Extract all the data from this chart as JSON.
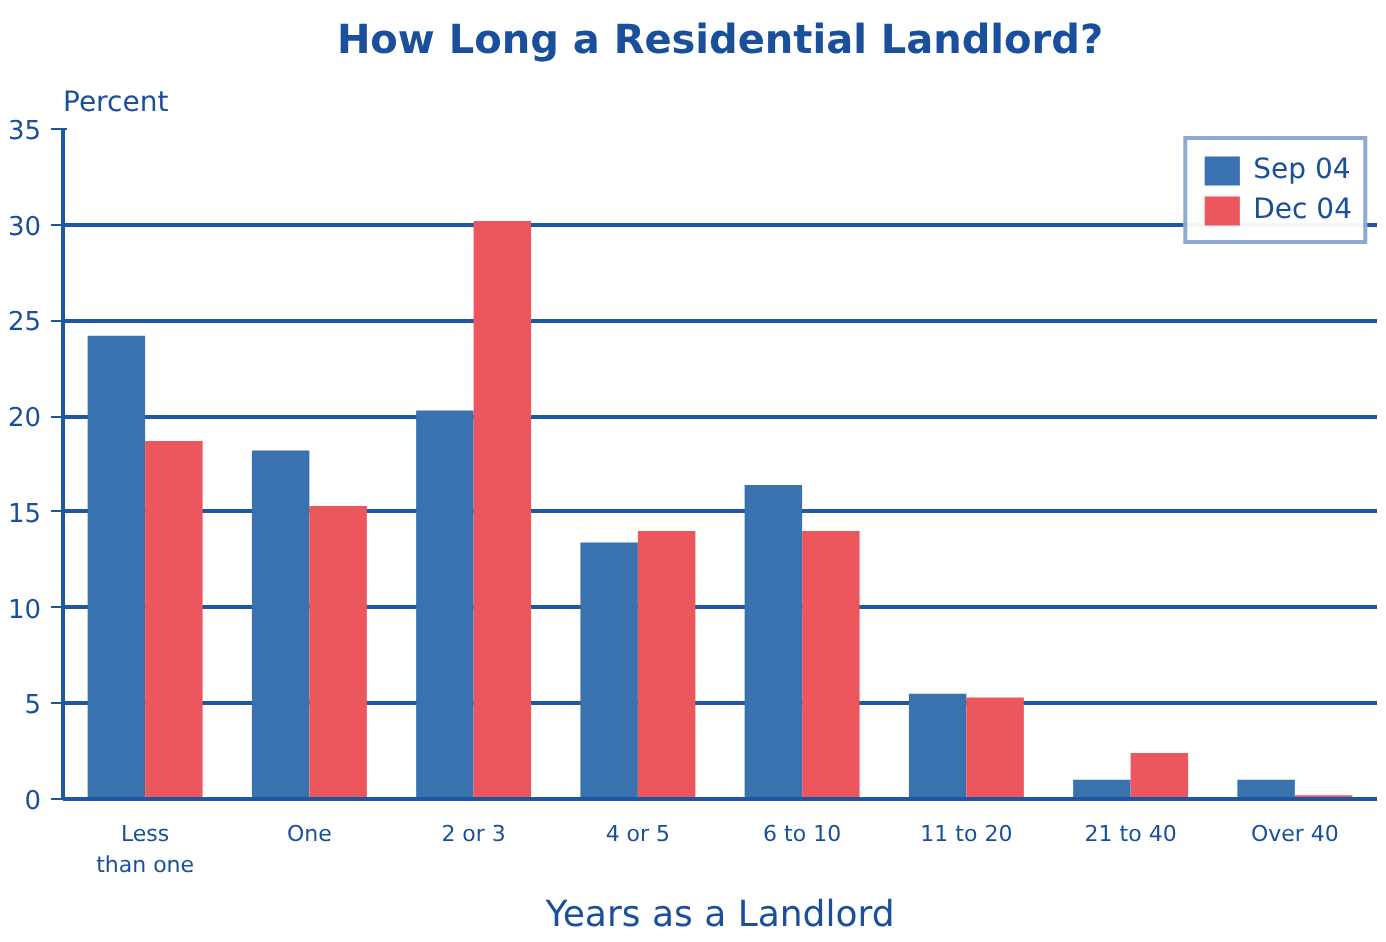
{
  "chart_data": {
    "type": "bar",
    "title": "How Long a Residential Landlord?",
    "xlabel": "Years as a Landlord",
    "ylabel": "Percent",
    "categories": [
      "Less than one",
      "One",
      "2 or 3",
      "4 or 5",
      "6 to 10",
      "11 to 20",
      "21 to 40",
      "Over 40"
    ],
    "series": [
      {
        "name": "Sep 04",
        "color": "#3a72b0",
        "values": [
          24.2,
          18.2,
          20.3,
          13.4,
          16.4,
          5.5,
          1.0,
          1.0
        ]
      },
      {
        "name": "Dec 04",
        "color": "#ec565d",
        "values": [
          18.7,
          15.3,
          30.2,
          14.0,
          14.0,
          5.3,
          2.4,
          0.2
        ]
      }
    ],
    "ylim": [
      0,
      35
    ],
    "yticks": [
      0,
      5,
      10,
      15,
      20,
      25,
      30,
      35
    ],
    "grid": "y",
    "legend": "top right"
  }
}
